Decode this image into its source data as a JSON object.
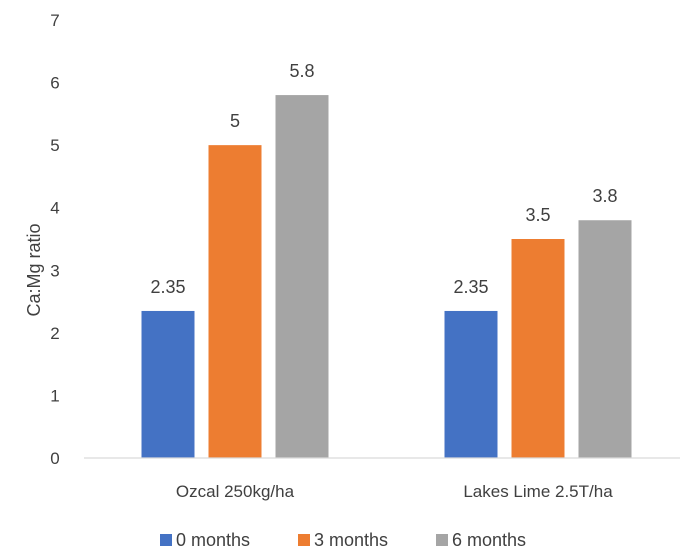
{
  "chart_data": {
    "type": "bar",
    "title": "",
    "xlabel": "",
    "ylabel": "Ca:Mg ratio",
    "ylim": [
      0,
      7
    ],
    "yticks": [
      0,
      1,
      2,
      3,
      4,
      5,
      6,
      7
    ],
    "grid": false,
    "legend_position": "bottom",
    "categories": [
      "Ozcal 250kg/ha",
      "Lakes Lime 2.5T/ha"
    ],
    "series": [
      {
        "name": "0 months",
        "color": "#4472C4",
        "values": [
          2.35,
          2.35
        ],
        "labels": [
          "2.35",
          "2.35"
        ]
      },
      {
        "name": "3 months",
        "color": "#ED7D31",
        "values": [
          5,
          3.5
        ],
        "labels": [
          "5",
          "3.5"
        ]
      },
      {
        "name": "6 months",
        "color": "#A5A5A5",
        "values": [
          5.8,
          3.8
        ],
        "labels": [
          "5.8",
          "3.8"
        ]
      }
    ]
  }
}
